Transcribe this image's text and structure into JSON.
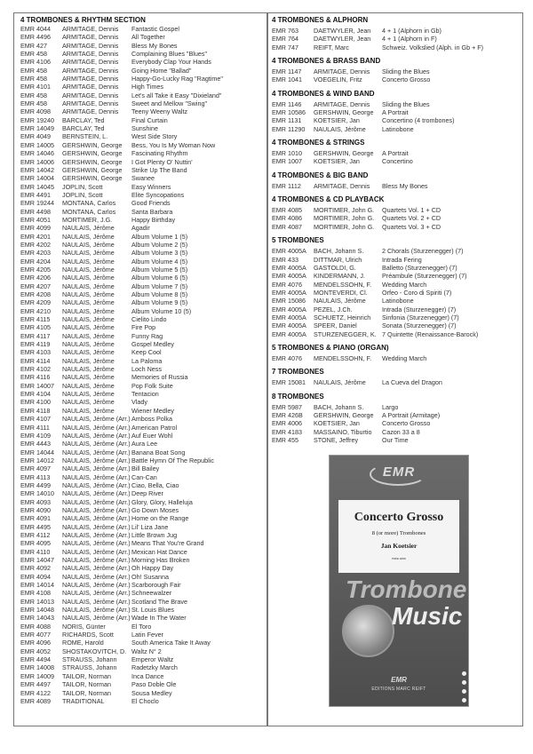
{
  "left_sections": [
    {
      "heading": "4 TROMBONES & RHYTHM SECTION",
      "rows": [
        [
          "EMR 4044",
          "ARMITAGE, Dennis",
          "Fantastic Gospel"
        ],
        [
          "EMR 4496",
          "ARMITAGE, Dennis",
          "All Together"
        ],
        [
          "EMR 427",
          "ARMITAGE, Dennis",
          "Bless My Bones"
        ],
        [
          "EMR 458",
          "ARMITAGE, Dennis",
          "Complaining Blues \"Blues\""
        ],
        [
          "EMR 4106",
          "ARMITAGE, Dennis",
          "Everybody Clap Your Hands"
        ],
        [
          "EMR 458",
          "ARMITAGE, Dennis",
          "Going Home \"Ballad\""
        ],
        [
          "EMR 458",
          "ARMITAGE, Dennis",
          "Happy-Go-Lucky Rag \"Ragtime\""
        ],
        [
          "EMR 4101",
          "ARMITAGE, Dennis",
          "High Times"
        ],
        [
          "EMR 458",
          "ARMITAGE, Dennis",
          "Let's all Take it Easy \"Dixieland\""
        ],
        [
          "EMR 458",
          "ARMITAGE, Dennis",
          "Sweet and Mellow \"Swing\""
        ],
        [
          "EMR 4098",
          "ARMITAGE, Dennis",
          "Teeny Weeny Waltz"
        ],
        [
          "EMR 19240",
          "BARCLAY, Ted",
          "Final Curtain"
        ],
        [
          "EMR 14049",
          "BARCLAY, Ted",
          "Sunshine"
        ],
        [
          "EMR 4049",
          "BERNSTEIN, L.",
          "West Side Story"
        ],
        [
          "EMR 14005",
          "GERSHWIN, George",
          "Bess, You Is My Woman Now"
        ],
        [
          "EMR 14046",
          "GERSHWIN, George",
          "Fascinating Rhythm"
        ],
        [
          "EMR 14006",
          "GERSHWIN, George",
          "I Got Plenty O' Nuttin'"
        ],
        [
          "EMR 14042",
          "GERSHWIN, George",
          "Strike Up The Band"
        ],
        [
          "EMR 14004",
          "GERSHWIN, George",
          "Swanee"
        ],
        [
          "EMR 14045",
          "JOPLIN, Scott",
          "Easy Winners"
        ],
        [
          "EMR 4491",
          "JOPLIN, Scott",
          "Elite Syncopations"
        ],
        [
          "EMR 19244",
          "MONTANA, Carlos",
          "Good Friends"
        ],
        [
          "EMR 4498",
          "MONTANA, Carlos",
          "Santa Barbara"
        ],
        [
          "EMR 4051",
          "MORTIMER, J.G.",
          "Happy Birthday"
        ],
        [
          "EMR 4099",
          "NAULAIS, Jérôme",
          "Agadir"
        ],
        [
          "EMR 4201",
          "NAULAIS, Jérôme",
          "Album Volume 1 (5)"
        ],
        [
          "EMR 4202",
          "NAULAIS, Jérôme",
          "Album Volume 2 (5)"
        ],
        [
          "EMR 4203",
          "NAULAIS, Jérôme",
          "Album Volume 3 (5)"
        ],
        [
          "EMR 4204",
          "NAULAIS, Jérôme",
          "Album Volume 4 (5)"
        ],
        [
          "EMR 4205",
          "NAULAIS, Jérôme",
          "Album Volume 5 (5)"
        ],
        [
          "EMR 4206",
          "NAULAIS, Jérôme",
          "Album Volume 6 (5)"
        ],
        [
          "EMR 4207",
          "NAULAIS, Jérôme",
          "Album Volume 7 (5)"
        ],
        [
          "EMR 4208",
          "NAULAIS, Jérôme",
          "Album Volume 8 (5)"
        ],
        [
          "EMR 4209",
          "NAULAIS, Jérôme",
          "Album Volume 9 (5)"
        ],
        [
          "EMR 4210",
          "NAULAIS, Jérôme",
          "Album Volume 10 (5)"
        ],
        [
          "EMR 4115",
          "NAULAIS, Jérôme",
          "Cielito Lindo"
        ],
        [
          "EMR 4105",
          "NAULAIS, Jérôme",
          "Fire Pop"
        ],
        [
          "EMR 4117",
          "NAULAIS, Jérôme",
          "Funny Rag"
        ],
        [
          "EMR 4119",
          "NAULAIS, Jérôme",
          "Gospel Medley"
        ],
        [
          "EMR 4103",
          "NAULAIS, Jérôme",
          "Keep Cool"
        ],
        [
          "EMR 4114",
          "NAULAIS, Jérôme",
          "La Paloma"
        ],
        [
          "EMR 4102",
          "NAULAIS, Jérôme",
          "Loch Ness"
        ],
        [
          "EMR 4116",
          "NAULAIS, Jérôme",
          "Memories of Russia"
        ],
        [
          "EMR 14007",
          "NAULAIS, Jérôme",
          "Pop Folk Suite"
        ],
        [
          "EMR 4104",
          "NAULAIS, Jérôme",
          "Tentacion"
        ],
        [
          "EMR 4100",
          "NAULAIS, Jérôme",
          "Vlady"
        ],
        [
          "EMR 4118",
          "NAULAIS, Jérôme",
          "Wiener Medley"
        ],
        [
          "EMR 4107",
          "NAULAIS, Jérôme (Arr.)",
          "Amboss Polka"
        ],
        [
          "EMR 4111",
          "NAULAIS, Jérôme (Arr.)",
          "American Patrol"
        ],
        [
          "EMR 4109",
          "NAULAIS, Jérôme (Arr.)",
          "Auf Euer Wohl"
        ],
        [
          "EMR 4443",
          "NAULAIS, Jérôme (Arr.)",
          "Aura Lee"
        ],
        [
          "EMR 14044",
          "NAULAIS, Jérôme (Arr.)",
          "Banana Boat Song"
        ],
        [
          "EMR 14012",
          "NAULAIS, Jérôme (Arr.)",
          "Battle Hymn Of The Republic"
        ],
        [
          "EMR 4097",
          "NAULAIS, Jérôme (Arr.)",
          "Bill Bailey"
        ],
        [
          "EMR 4113",
          "NAULAIS, Jérôme (Arr.)",
          "Can-Can"
        ],
        [
          "EMR 4499",
          "NAULAIS, Jérôme (Arr.)",
          "Ciao, Bella, Ciao"
        ],
        [
          "EMR 14010",
          "NAULAIS, Jérôme (Arr.)",
          "Deep River"
        ],
        [
          "EMR 4093",
          "NAULAIS, Jérôme (Arr.)",
          "Glory, Glory, Halleluja"
        ],
        [
          "EMR 4090",
          "NAULAIS, Jérôme (Arr.)",
          "Go Down Moses"
        ],
        [
          "EMR 4091",
          "NAULAIS, Jérôme (Arr.)",
          "Home on the Range"
        ],
        [
          "EMR 4495",
          "NAULAIS, Jérôme (Arr.)",
          "Lil' Liza Jane"
        ],
        [
          "EMR 4112",
          "NAULAIS, Jérôme (Arr.)",
          "Little Brown Jug"
        ],
        [
          "EMR 4095",
          "NAULAIS, Jérôme (Arr.)",
          "Means That You're Grand"
        ],
        [
          "EMR 4110",
          "NAULAIS, Jérôme (Arr.)",
          "Mexican Hat Dance"
        ],
        [
          "EMR 14047",
          "NAULAIS, Jérôme (Arr.)",
          "Morning Has Broken"
        ],
        [
          "EMR 4092",
          "NAULAIS, Jérôme (Arr.)",
          "Oh Happy Day"
        ],
        [
          "EMR 4094",
          "NAULAIS, Jérôme (Arr.)",
          "Oh! Susanna"
        ],
        [
          "EMR 14014",
          "NAULAIS, Jérôme (Arr.)",
          "Scarborough Fair"
        ],
        [
          "EMR 4108",
          "NAULAIS, Jérôme (Arr.)",
          "Schneewalzer"
        ],
        [
          "EMR 14013",
          "NAULAIS, Jérôme (Arr.)",
          "Scotland The Brave"
        ],
        [
          "EMR 14048",
          "NAULAIS, Jérôme (Arr.)",
          "St. Louis Blues"
        ],
        [
          "EMR 14043",
          "NAULAIS, Jérôme (Arr.)",
          "Wade In The Water"
        ],
        [
          "EMR 4088",
          "NORIS, Günter",
          "El Toro"
        ],
        [
          "EMR 4077",
          "RICHARDS, Scott",
          "Latin Fever"
        ],
        [
          "EMR 4096",
          "ROME, Harold",
          "South America Take It Away"
        ],
        [
          "EMR 4052",
          "SHOSTAKOVITCH, D.",
          "Waltz N° 2"
        ],
        [
          "EMR 4494",
          "STRAUSS, Johann",
          "Emperor Waltz"
        ],
        [
          "EMR 14008",
          "STRAUSS, Johann",
          "Radetzky March"
        ],
        [
          "EMR 14009",
          "TAILOR, Norman",
          "Inca Dance"
        ],
        [
          "EMR 4497",
          "TAILOR, Norman",
          "Paso Doble Ole"
        ],
        [
          "EMR 4122",
          "TAILOR, Norman",
          "Sousa Medley"
        ],
        [
          "EMR 4089",
          "TRADITIONAL",
          "El Choclo"
        ]
      ]
    }
  ],
  "right_sections": [
    {
      "heading": "4 TROMBONES & ALPHORN",
      "rows": [
        [
          "EMR 763",
          "DAETWYLER, Jean",
          "4 + 1 (Alphorn in Gb)"
        ],
        [
          "EMR 764",
          "DAETWYLER, Jean",
          "4 + 1 (Alphorn in F)"
        ],
        [
          "EMR 747",
          "REIFT, Marc",
          "Schweiz. Volkslied (Alph. in Gb + F)"
        ]
      ]
    },
    {
      "heading": "4 TROMBONES & BRASS BAND",
      "rows": [
        [
          "EMR 1147",
          "ARMITAGE, Dennis",
          "Sliding the Blues"
        ],
        [
          "EMR 1041",
          "VOEGELIN, Fritz",
          "Concerto Grosso"
        ]
      ]
    },
    {
      "heading": "4 TROMBONES & WIND BAND",
      "rows": [
        [
          "EMR 1146",
          "ARMITAGE, Dennis",
          "Sliding the Blues"
        ],
        [
          "EMR 10586",
          "GERSHWIN, George",
          "A Portrait"
        ],
        [
          "EMR 1131",
          "KOETSIER, Jan",
          "Concertino (4 trombones)"
        ],
        [
          "EMR 11290",
          "NAULAIS, Jérôme",
          "Latinobone"
        ]
      ]
    },
    {
      "heading": "4 TROMBONES & STRINGS",
      "rows": [
        [
          "EMR 1010",
          "GERSHWIN, George",
          "A Portrait"
        ],
        [
          "EMR 1007",
          "KOETSIER, Jan",
          "Concertino"
        ]
      ]
    },
    {
      "heading": "4 TROMBONES & BIG BAND",
      "rows": [
        [
          "EMR 1112",
          "ARMITAGE, Dennis",
          "Bless My Bones"
        ]
      ]
    },
    {
      "heading": "4 TROMBONES & CD PLAYBACK",
      "rows": [
        [
          "EMR 4085",
          "MORTIMER, John G.",
          "Quartets Vol. 1 + CD"
        ],
        [
          "EMR 4086",
          "MORTIMER, John G.",
          "Quartets Vol. 2 + CD"
        ],
        [
          "EMR 4087",
          "MORTIMER, John G.",
          "Quartets Vol. 3 + CD"
        ]
      ]
    },
    {
      "heading": "5 TROMBONES",
      "rows": [
        [
          "EMR 4005A",
          "BACH, Johann S.",
          "2 Chorals (Sturzenegger) (7)"
        ],
        [
          "EMR 433",
          "DITTMAR, Ulrich",
          "Intrada Fering"
        ],
        [
          "EMR 4005A",
          "GASTOLDI, G.",
          "Balletto (Sturzenegger) (7)"
        ],
        [
          "EMR 4005A",
          "KINDERMANN, J.",
          "Préambule (Sturzenegger) (7)"
        ],
        [
          "EMR 4076",
          "MENDELSSOHN, F.",
          "Wedding March"
        ],
        [
          "EMR 4005A",
          "MONTEVERDI, Cl.",
          "Orfeo - Coro di Spiriti (7)"
        ],
        [
          "EMR 15086",
          "NAULAIS, Jérôme",
          "Latinobone"
        ],
        [
          "EMR 4005A",
          "PEZEL, J.Ch.",
          "Intrada (Sturzenegger) (7)"
        ],
        [
          "EMR 4005A",
          "SCHUETZ, Heinrich",
          "Sinfonia (Sturzenegger) (7)"
        ],
        [
          "EMR 4005A",
          "SPEER, Daniel",
          "Sonata (Sturzenegger) (7)"
        ],
        [
          "EMR 4005A",
          "STURZENEGGER, K.",
          "7 Quintette (Renaissance-Barock)"
        ]
      ]
    },
    {
      "heading": "5 TROMBONES & PIANO (ORGAN)",
      "rows": [
        [
          "EMR 4076",
          "MENDELSSOHN, F.",
          "Wedding March"
        ]
      ]
    },
    {
      "heading": "7 TROMBONES",
      "rows": [
        [
          "EMR 15081",
          "NAULAIS, Jérôme",
          "La Cueva del Dragon"
        ]
      ]
    },
    {
      "heading": "8 TROMBONES",
      "rows": [
        [
          "EMR 5987",
          "BACH, Johann S.",
          "Largo"
        ],
        [
          "EMR 426B",
          "GERSHWIN, George",
          "A Portrait (Armitage)"
        ],
        [
          "EMR 4006",
          "KOETSIER, Jan",
          "Concerto Grosso"
        ],
        [
          "EMR 4183",
          "MASSAINO, Tiburtio",
          "Cazon 33 a 8"
        ],
        [
          "EMR 455",
          "STONE, Jeffrey",
          "Our Time"
        ]
      ]
    }
  ],
  "cover": {
    "logo": "EMR",
    "title": "Concerto Grosso",
    "subtitle": "8 (or more) Trombones",
    "composer": "Jan Koetsier",
    "catalog": "EMR 4006",
    "series_line1": "Trombone",
    "series_line2": "Music",
    "publisher_logo": "EMR",
    "publisher": "EDITIONS MARC REIFT",
    "background": "#5a5a5a"
  }
}
